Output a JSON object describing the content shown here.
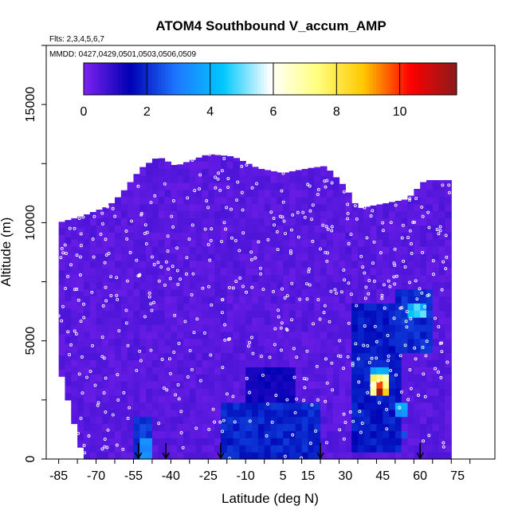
{
  "chart_data": {
    "type": "heatmap",
    "title": "ATOM4 Southbound V_accum_AMP",
    "flights_note": "Flts: 2,3,4,5,6,7",
    "dates_note": "MMDD: 0427,0429,0501,0503,0506,0509",
    "xlabel": "Latitude (deg N)",
    "ylabel": "Altitude (m)",
    "xlim": [
      -90,
      90
    ],
    "ylim": [
      0,
      17500
    ],
    "x_tick_labels": [
      "-85",
      "-70",
      "-55",
      "-40",
      "-25",
      "-10",
      "5",
      "15",
      "30",
      "45",
      "60",
      "75"
    ],
    "x_tick_values": [
      -85,
      -70,
      -55,
      -40,
      -25,
      -10,
      5,
      15,
      30,
      45,
      60,
      75
    ],
    "y_tick_labels": [
      "0",
      "5000",
      "10000",
      "15000"
    ],
    "y_tick_values": [
      0,
      5000,
      10000,
      15000
    ],
    "colorbar": {
      "tick_labels": [
        "0",
        "2",
        "4",
        "6",
        "8",
        "10"
      ],
      "tick_values": [
        0,
        2,
        4,
        6,
        8,
        10
      ],
      "range": [
        0,
        11.8
      ],
      "colors": [
        "#7d22f0",
        "#0000b4",
        "#1e78ff",
        "#00c8ff",
        "#ffffff",
        "#ffff80",
        "#ffc800",
        "#ff0000",
        "#8b1a1a"
      ]
    },
    "coverage_top_m": [
      [
        -85,
        10000
      ],
      [
        -75,
        10300
      ],
      [
        -65,
        10700
      ],
      [
        -60,
        11200
      ],
      [
        -52,
        12300
      ],
      [
        -45,
        12800
      ],
      [
        -38,
        12400
      ],
      [
        -25,
        12900
      ],
      [
        -15,
        12800
      ],
      [
        -5,
        12300
      ],
      [
        5,
        12100
      ],
      [
        15,
        12300
      ],
      [
        22,
        12400
      ],
      [
        30,
        11500
      ],
      [
        35,
        10600
      ],
      [
        45,
        10800
      ],
      [
        55,
        11000
      ],
      [
        62,
        11800
      ],
      [
        72,
        11800
      ]
    ],
    "enhanced_regions": [
      {
        "lat": [
          -56,
          -47
        ],
        "alt": [
          0,
          1800
        ],
        "value": 2.2
      },
      {
        "lat": [
          -20,
          20
        ],
        "alt": [
          0,
          2500
        ],
        "value": 1.9
      },
      {
        "lat": [
          -10,
          10
        ],
        "alt": [
          2500,
          4000
        ],
        "value": 1.3
      },
      {
        "lat": [
          33,
          52
        ],
        "alt": [
          300,
          6500
        ],
        "value": 1.8
      },
      {
        "lat": [
          50,
          65
        ],
        "alt": [
          4500,
          7300
        ],
        "value": 2.0
      },
      {
        "lat": [
          -52,
          -48
        ],
        "alt": [
          0,
          900
        ],
        "value": 3.5
      },
      {
        "lat": [
          40,
          48
        ],
        "alt": [
          2600,
          3500
        ],
        "value": 7.5
      },
      {
        "lat": [
          42,
          46
        ],
        "alt": [
          2700,
          3200
        ],
        "value": 10.5
      },
      {
        "lat": [
          41,
          47
        ],
        "alt": [
          3500,
          3900
        ],
        "value": 4.2
      },
      {
        "lat": [
          56,
          62
        ],
        "alt": [
          5900,
          6600
        ],
        "value": 4.4
      },
      {
        "lat": [
          51,
          56
        ],
        "alt": [
          1800,
          2500
        ],
        "value": 3.6
      },
      {
        "lat": [
          52,
          56
        ],
        "alt": [
          800,
          1300
        ],
        "value": 2.6
      }
    ],
    "profile_arrows_lat": [
      -53,
      -42,
      -20,
      20,
      60
    ]
  }
}
